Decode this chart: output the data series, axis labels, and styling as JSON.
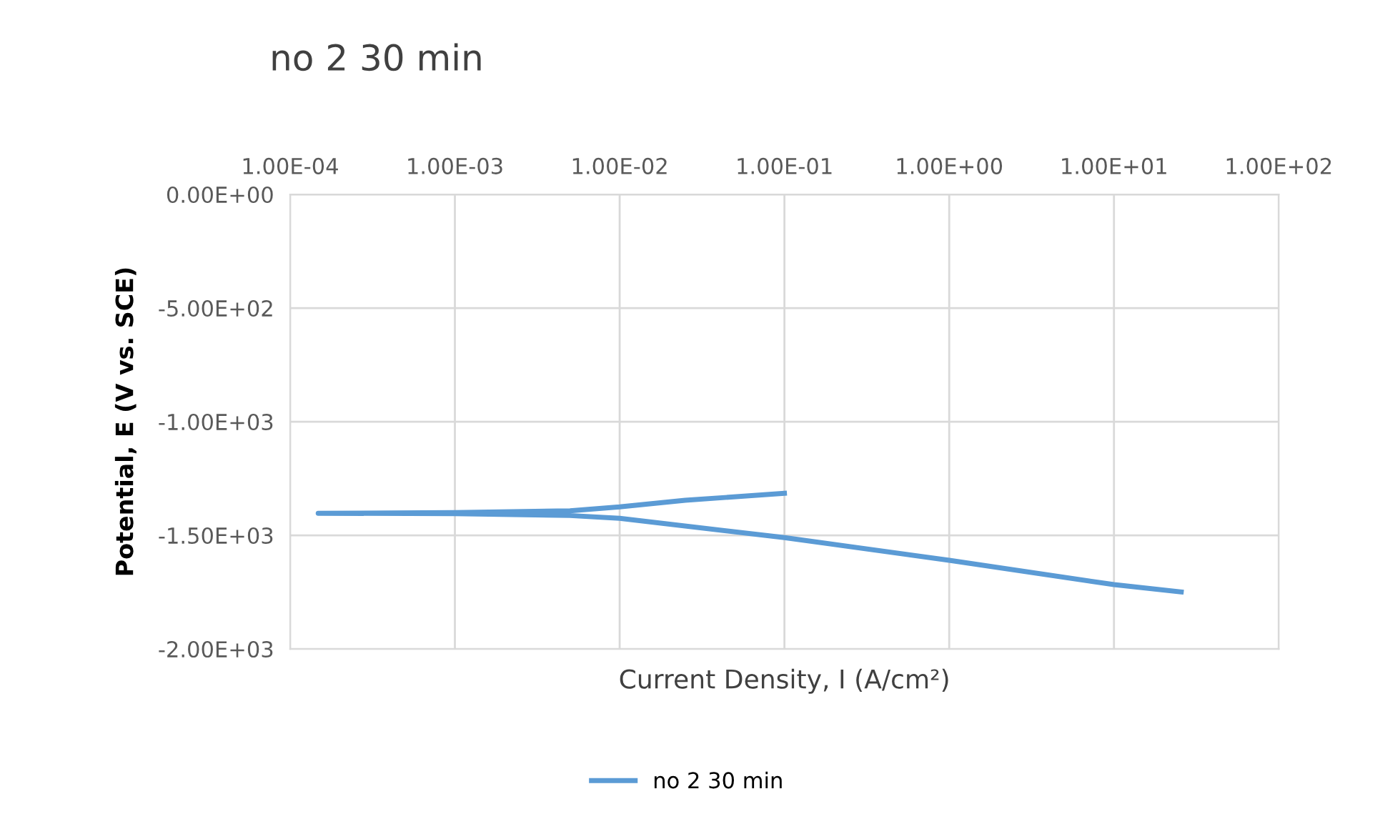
{
  "chart_data": {
    "type": "line",
    "title": "no 2 30 min",
    "xlabel": "Current Density, I (A/cm²)",
    "ylabel": "Potential, E (V vs. SCE)",
    "log": "x",
    "grid": true,
    "legend": "bottom",
    "marker": "none",
    "line_style": "solid",
    "xlim": [
      0.0001,
      100
    ],
    "ylim": [
      -2000,
      0
    ],
    "xticks": [
      {
        "value": 0.0001,
        "label": "1.00E-04"
      },
      {
        "value": 0.001,
        "label": "1.00E-03"
      },
      {
        "value": 0.01,
        "label": "1.00E-02"
      },
      {
        "value": 0.1,
        "label": "1.00E-01"
      },
      {
        "value": 1,
        "label": "1.00E+00"
      },
      {
        "value": 10,
        "label": "1.00E+01"
      },
      {
        "value": 100,
        "label": "1.00E+02"
      }
    ],
    "yticks": [
      {
        "value": 0,
        "label": "0.00E+00"
      },
      {
        "value": -500,
        "label": "-5.00E+02"
      },
      {
        "value": -1000,
        "label": "-1.00E+03"
      },
      {
        "value": -1500,
        "label": "-1.50E+03"
      },
      {
        "value": -2000,
        "label": "-2.00E+03"
      }
    ],
    "series": [
      {
        "name": "no 2 30 min",
        "color": "#5b9bd5",
        "x": [
          25.6,
          10,
          1,
          0.1,
          0.01,
          0.005,
          0.001,
          0.000148,
          0.001,
          0.005,
          0.01,
          0.025,
          0.1
        ],
        "values": [
          -1749,
          -1717,
          -1610,
          -1510,
          -1425,
          -1413,
          -1405,
          -1403,
          -1400,
          -1392,
          -1375,
          -1346,
          -1315
        ]
      }
    ]
  }
}
